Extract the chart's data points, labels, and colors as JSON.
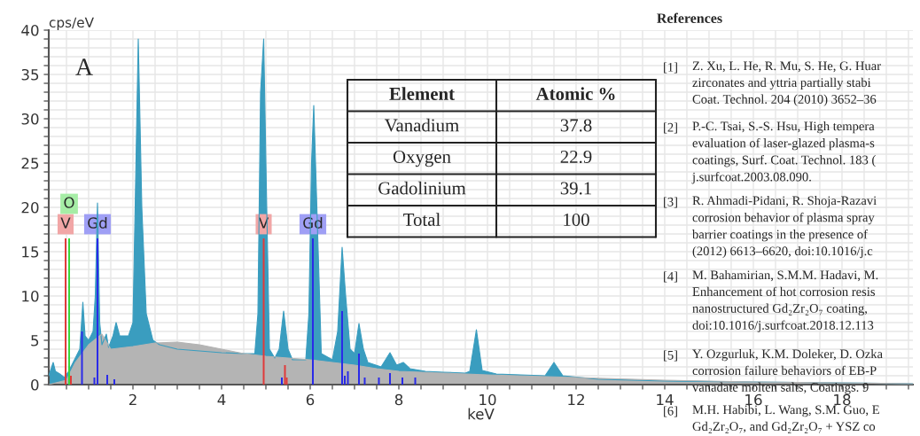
{
  "chart_data": {
    "type": "area",
    "xlabel": "keV",
    "ylabel": "cps/eV",
    "xlim": [
      0.1,
      19.6
    ],
    "xticks": [
      {
        "value": 0.5,
        "label": null
      },
      {
        "value": 1,
        "label": null
      },
      {
        "value": 1.5,
        "label": null
      },
      2,
      {
        "value": 2.5,
        "label": null
      },
      {
        "value": 3,
        "label": null
      },
      {
        "value": 3.5,
        "label": null
      },
      4,
      {
        "value": 4.5,
        "label": null
      },
      {
        "value": 5,
        "label": null
      },
      {
        "value": 5.5,
        "label": null
      },
      6,
      {
        "value": 6.5,
        "label": null
      },
      {
        "value": 7,
        "label": null
      },
      {
        "value": 7.5,
        "label": null
      },
      8,
      {
        "value": 8.5,
        "label": null
      },
      {
        "value": 9,
        "label": null
      },
      {
        "value": 9.5,
        "label": null
      },
      10,
      {
        "value": 10.5,
        "label": null
      },
      {
        "value": 11,
        "label": null
      },
      {
        "value": 11.5,
        "label": null
      },
      12,
      {
        "value": 12.5,
        "label": null
      },
      {
        "value": 13,
        "label": null
      },
      {
        "value": 13.5,
        "label": null
      },
      14,
      {
        "value": 14.5,
        "label": null
      },
      {
        "value": 15,
        "label": null
      },
      {
        "value": 15.5,
        "label": null
      },
      16,
      {
        "value": 16.5,
        "label": null
      },
      {
        "value": 17,
        "label": null
      },
      {
        "value": 17.5,
        "label": null
      },
      18,
      {
        "value": 18.5,
        "label": null
      },
      {
        "value": 19,
        "label": null
      },
      {
        "value": 19.5,
        "label": null
      }
    ],
    "ylim": [
      0,
      40
    ],
    "yticks": [
      0,
      {
        "value": 1,
        "label": null
      },
      {
        "value": 2,
        "label": null
      },
      {
        "value": 3,
        "label": null
      },
      {
        "value": 4,
        "label": null
      },
      5,
      {
        "value": 6,
        "label": null
      },
      {
        "value": 7,
        "label": null
      },
      {
        "value": 8,
        "label": null
      },
      {
        "value": 9,
        "label": null
      },
      10,
      {
        "value": 11,
        "label": null
      },
      {
        "value": 12,
        "label": null
      },
      {
        "value": 13,
        "label": null
      },
      {
        "value": 14,
        "label": null
      },
      15,
      {
        "value": 16,
        "label": null
      },
      {
        "value": 17,
        "label": null
      },
      {
        "value": 18,
        "label": null
      },
      {
        "value": 19,
        "label": null
      },
      20,
      {
        "value": 21,
        "label": null
      },
      {
        "value": 22,
        "label": null
      },
      {
        "value": 23,
        "label": null
      },
      {
        "value": 24,
        "label": null
      },
      25,
      {
        "value": 26,
        "label": null
      },
      {
        "value": 27,
        "label": null
      },
      {
        "value": 28,
        "label": null
      },
      {
        "value": 29,
        "label": null
      },
      30,
      {
        "value": 31,
        "label": null
      },
      {
        "value": 32,
        "label": null
      },
      {
        "value": 33,
        "label": null
      },
      {
        "value": 34,
        "label": null
      },
      35,
      {
        "value": 36,
        "label": null
      },
      {
        "value": 37,
        "label": null
      },
      {
        "value": 38,
        "label": null
      },
      {
        "value": 39,
        "label": null
      },
      40
    ],
    "grid": true,
    "legend": false,
    "series": [
      {
        "color": "#3a9dbf",
        "x": [
          0.1,
          0.2,
          0.25,
          0.35,
          0.45,
          0.55,
          0.7,
          0.8,
          0.87,
          0.92,
          1.0,
          1.1,
          1.15,
          1.2,
          1.25,
          1.3,
          1.4,
          1.45,
          1.55,
          1.62,
          1.7,
          1.9,
          2.0,
          2.05,
          2.12,
          2.2,
          2.3,
          2.45,
          2.6,
          3.0,
          3.5,
          4.0,
          4.5,
          4.75,
          4.82,
          4.88,
          4.95,
          5.0,
          5.08,
          5.2,
          5.3,
          5.4,
          5.5,
          5.6,
          5.9,
          5.97,
          6.03,
          6.08,
          6.15,
          6.25,
          6.5,
          6.62,
          6.72,
          6.8,
          6.9,
          7.0,
          7.1,
          7.2,
          7.3,
          7.6,
          7.8,
          7.95,
          8.1,
          8.25,
          8.6,
          9.0,
          9.5,
          9.6,
          9.75,
          9.88,
          10.2,
          11.3,
          11.5,
          11.7,
          12.5,
          14,
          16,
          18,
          19.6
        ],
        "values": [
          1.0,
          2.5,
          1.5,
          1.2,
          0.8,
          1.5,
          3.0,
          4.0,
          9.3,
          5.5,
          5.0,
          6,
          10,
          20.5,
          7,
          4.5,
          5.7,
          4.2,
          5.5,
          7,
          5.5,
          5.5,
          7,
          20,
          39,
          20,
          8,
          5,
          4.5,
          4.0,
          3.8,
          3.6,
          3.5,
          3.5,
          8,
          33,
          39,
          25,
          4,
          3.0,
          4,
          8.3,
          4,
          2.8,
          2.8,
          8,
          25,
          31.5,
          20,
          3.5,
          2.8,
          6,
          15.5,
          10,
          4,
          3.5,
          6.9,
          4,
          2.5,
          2.0,
          3.6,
          2.2,
          2.5,
          1.8,
          1.5,
          1.4,
          1.3,
          1.5,
          6.2,
          1.6,
          1.2,
          1.0,
          2.5,
          1.0,
          0.6,
          0.4,
          0.3,
          0.2,
          0.1
        ]
      },
      {
        "color": "#b4b4b4",
        "x": [
          0.1,
          0.5,
          0.7,
          1.0,
          1.3,
          1.5,
          2.0,
          2.5,
          3.0,
          3.5,
          4.0,
          4.5,
          5.0,
          5.5,
          6.0,
          6.5,
          7.0,
          7.5,
          8.0,
          9.0,
          10,
          12,
          14,
          16,
          18,
          19.6
        ],
        "values": [
          0,
          0.5,
          2.5,
          4.5,
          5.7,
          4,
          4.3,
          4.7,
          4.8,
          4.5,
          4.0,
          3.5,
          3.2,
          3.0,
          2.8,
          2.5,
          2.2,
          1.8,
          1.5,
          1.3,
          1.1,
          0.8,
          0.5,
          0.3,
          0.2,
          0.1
        ]
      },
      {
        "type": "bar",
        "color": "#e03a3a",
        "x": [
          0.48,
          0.6,
          4.95,
          5.43,
          5.47
        ],
        "values": [
          16.5,
          1.0,
          16.5,
          2.2,
          0.8
        ],
        "value_labels": [
          "V",
          null,
          "V",
          null,
          null
        ]
      },
      {
        "type": "bar",
        "color": "#3ad83a",
        "x": [
          0.56
        ],
        "values": [
          16.5
        ],
        "value_labels": [
          "O"
        ]
      },
      {
        "type": "bar",
        "color": "#2a2ae8",
        "x": [
          0.85,
          1.13,
          1.2,
          1.42,
          1.58,
          5.36,
          6.06,
          6.72,
          6.78,
          6.85,
          7.1,
          7.23,
          7.55,
          7.8,
          8.08,
          8.37
        ],
        "values": [
          6.0,
          0.8,
          16.5,
          1.1,
          0.6,
          0.8,
          16.5,
          8.3,
          1.0,
          1.5,
          3.5,
          0.8,
          0.8,
          1.3,
          0.8,
          0.8
        ],
        "value_labels": [
          null,
          null,
          "Gd",
          null,
          null,
          null,
          "Gd",
          null,
          null,
          null,
          null,
          null,
          null,
          null,
          null,
          null
        ]
      }
    ],
    "annotations": [
      "A",
      "Element",
      "Atomic %",
      "Vanadium",
      "37.8",
      "Oxygen",
      "22.9",
      "Gadolinium",
      "39.1",
      "Total",
      "100",
      "References",
      "[1]",
      "Z. Xu, L. He, R. Mu, S. He, G. Huar\nzirconates and yttria partially stabi\nCoat. Technol. 204 (2010) 3652–36",
      "[2]",
      "P.-C. Tsai, S.-S. Hsu, High tempera\nevaluation of laser-glazed plasma-s\ncoatings, Surf. Coat. Technol. 183 (\nj.surfcoat.2003.08.090.",
      "[3]",
      "R. Ahmadi-Pidani, R. Shoja-Razavi\ncorrosion behavior of plasma spray\nbarrier coatings in the presence of\n(2012) 6613–6620, doi:10.1016/j.c",
      "[4]",
      "M. Bahamirian, S.M.M. Hadavi, M.\nEnhancement of hot corrosion resis\nnanostructured Gd₂Zr₂O₇ coating,\ndoi:10.1016/j.surfcoat.2018.12.113",
      "[5]",
      "Y. Ozgurluk, K.M. Doleker, D. Ozka\ncorrosion failure behaviors of EB-P\nvanadate molten salts, Coatings. 9",
      "[6]",
      "M.H. Habibi, L. Wang, S.M. Guo, E\nGd₂Zr₂O₇, and Gd₂Zr₂O₇ + YSZ co"
    ]
  }
}
